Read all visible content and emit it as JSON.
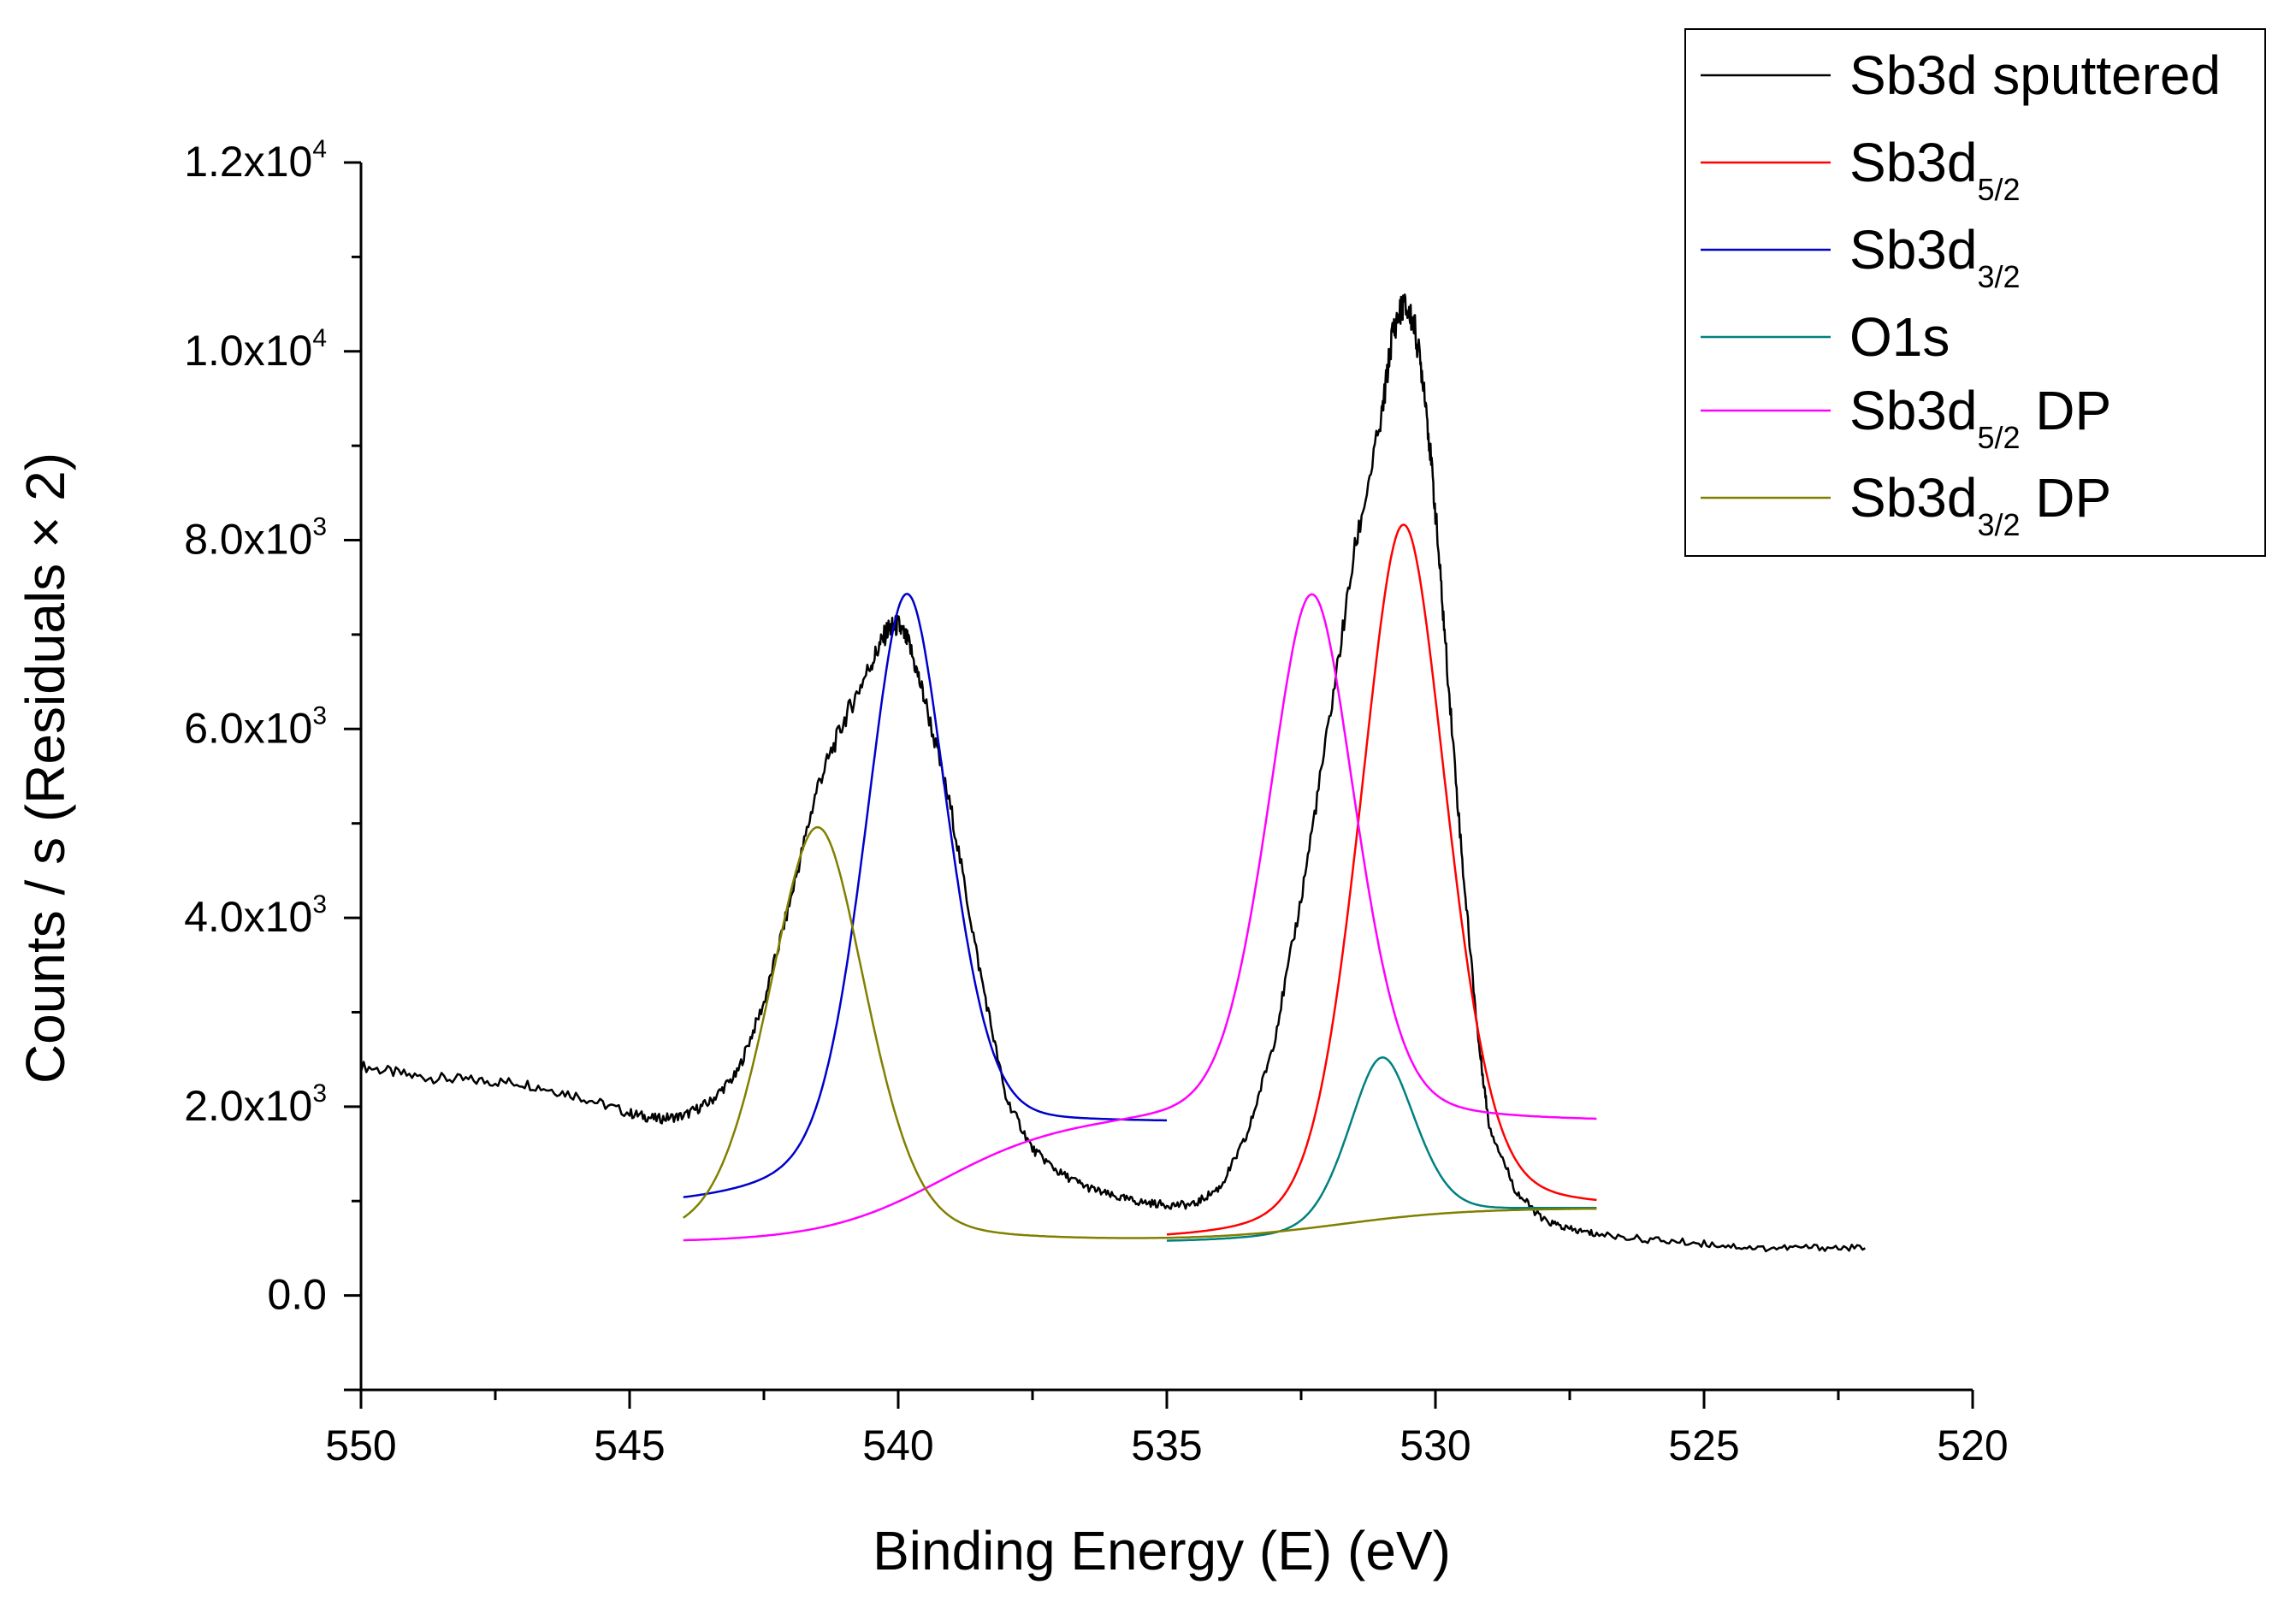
{
  "chart_data": {
    "type": "line",
    "title": "",
    "xlabel": "Binding Energy (E) (eV)",
    "ylabel": "Counts / s  (Residuals × 2)",
    "xlim": [
      550,
      520
    ],
    "ylim": [
      -1000,
      12000
    ],
    "x_ticks": [
      550,
      545,
      540,
      535,
      530,
      525,
      520
    ],
    "y_ticks": [
      {
        "value": 12000,
        "mant": "1.2x10",
        "exp": "4"
      },
      {
        "value": 10000,
        "mant": "1.0x10",
        "exp": "4"
      },
      {
        "value": 8000,
        "mant": "8.0x10",
        "exp": "3"
      },
      {
        "value": 6000,
        "mant": "6.0x10",
        "exp": "3"
      },
      {
        "value": 4000,
        "mant": "4.0x10",
        "exp": "3"
      },
      {
        "value": 2000,
        "mant": "2.0x10",
        "exp": "3"
      },
      {
        "value": 0,
        "mant": "0.0",
        "exp": ""
      }
    ],
    "grid": false,
    "legend_position": "top-right",
    "series": [
      {
        "name": "Sb3d sputtered",
        "label_main": "Sb3d sputtered",
        "label_sub": "",
        "label_suffix": "",
        "color": "#000000",
        "kind": "data",
        "points": [
          [
            550,
            2430
          ],
          [
            549,
            2320
          ],
          [
            548,
            2280
          ],
          [
            547,
            2250
          ],
          [
            546,
            2120
          ],
          [
            545,
            1930
          ],
          [
            544.5,
            1870
          ],
          [
            544,
            1900
          ],
          [
            543.5,
            2050
          ],
          [
            543,
            2350
          ],
          [
            542.5,
            3100
          ],
          [
            542,
            4200
          ],
          [
            541.5,
            5400
          ],
          [
            541,
            6100
          ],
          [
            540.5,
            6700
          ],
          [
            540.2,
            7050
          ],
          [
            540,
            7100
          ],
          [
            539.8,
            6900
          ],
          [
            539.5,
            6300
          ],
          [
            539,
            5100
          ],
          [
            538.5,
            3500
          ],
          [
            538,
            2100
          ],
          [
            537.5,
            1550
          ],
          [
            537,
            1300
          ],
          [
            536.5,
            1150
          ],
          [
            536,
            1050
          ],
          [
            535.5,
            990
          ],
          [
            535,
            960
          ],
          [
            534.5,
            960
          ],
          [
            534,
            1150
          ],
          [
            533.5,
            1700
          ],
          [
            533,
            2700
          ],
          [
            532.5,
            4200
          ],
          [
            532,
            6000
          ],
          [
            531.5,
            7900
          ],
          [
            531,
            9300
          ],
          [
            530.8,
            10200
          ],
          [
            530.6,
            10500
          ],
          [
            530.4,
            10300
          ],
          [
            530.2,
            9600
          ],
          [
            530,
            8300
          ],
          [
            529.8,
            6800
          ],
          [
            529.5,
            4600
          ],
          [
            529.2,
            2700
          ],
          [
            529,
            1800
          ],
          [
            528.5,
            1100
          ],
          [
            528,
            800
          ],
          [
            527.5,
            700
          ],
          [
            527,
            650
          ],
          [
            526,
            590
          ],
          [
            525,
            550
          ],
          [
            524,
            500
          ],
          [
            523,
            510
          ],
          [
            522,
            500
          ]
        ]
      },
      {
        "name": "Sb3d5/2",
        "label_main": "Sb3d",
        "label_sub": "5/2",
        "label_suffix": "",
        "color": "#ff0000",
        "kind": "peak",
        "base_start": 900,
        "base_end": 560,
        "step_center": 531,
        "step_width": 1.0,
        "center": 530.6,
        "amp": 7400,
        "sigma": 0.85,
        "x_range": [
          535,
          527
        ]
      },
      {
        "name": "Sb3d3/2",
        "label_main": "Sb3d",
        "label_sub": "3/2",
        "label_suffix": "",
        "color": "#0000cc",
        "kind": "peak",
        "base_start": 1820,
        "base_end": 920,
        "step_center": 540.5,
        "step_width": 1.3,
        "center": 539.85,
        "amp": 5950,
        "sigma": 0.8,
        "x_range": [
          544,
          535
        ]
      },
      {
        "name": "O1s",
        "label_main": "O1s",
        "label_sub": "",
        "label_suffix": "",
        "color": "#008080",
        "kind": "peak",
        "base_start": 920,
        "base_end": 560,
        "step_center": 531,
        "step_width": 1.0,
        "center": 531.0,
        "amp": 1780,
        "sigma": 0.65,
        "x_range": [
          535,
          527
        ]
      },
      {
        "name": "Sb3d5/2 DP",
        "label_main": "Sb3d",
        "label_sub": "5/2",
        "label_suffix": " DP",
        "color": "#ff00ff",
        "kind": "peak",
        "base_start": 1830,
        "base_end": 560,
        "step_center": 539.2,
        "step_width": 1.1,
        "center": 532.3,
        "amp": 5600,
        "sigma": 0.85,
        "x_range": [
          544,
          527
        ]
      },
      {
        "name": "Sb3d3/2 DP",
        "label_main": "Sb3d",
        "label_sub": "3/2",
        "label_suffix": " DP",
        "color": "#808000",
        "kind": "peak",
        "base_start": 920,
        "base_end": 560,
        "step_center": 531.8,
        "step_width": 1.2,
        "center": 541.5,
        "amp": 4400,
        "sigma": 0.95,
        "x_range": [
          544,
          527
        ]
      }
    ]
  }
}
